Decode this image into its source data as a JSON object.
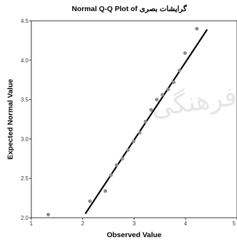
{
  "chart_data": {
    "type": "scatter",
    "title": "Normal Q-Q Plot of گرایشات بصری",
    "xlabel": "Observed Value",
    "ylabel": "Expected Normal Value",
    "xlim": [
      1,
      5
    ],
    "ylim": [
      2.0,
      4.5
    ],
    "xticks": [
      "1",
      "2",
      "3",
      "4",
      "5"
    ],
    "yticks": [
      "2.0",
      "2.5",
      "3.0",
      "3.5",
      "4.0",
      "4.5"
    ],
    "points": [
      {
        "x": 1.33,
        "y": 2.04
      },
      {
        "x": 2.14,
        "y": 2.21
      },
      {
        "x": 2.44,
        "y": 2.34
      },
      {
        "x": 2.55,
        "y": 2.54
      },
      {
        "x": 2.66,
        "y": 2.67
      },
      {
        "x": 2.77,
        "y": 2.75
      },
      {
        "x": 2.88,
        "y": 2.86
      },
      {
        "x": 2.99,
        "y": 2.97
      },
      {
        "x": 3.11,
        "y": 3.08
      },
      {
        "x": 3.22,
        "y": 3.22
      },
      {
        "x": 3.33,
        "y": 3.37
      },
      {
        "x": 3.44,
        "y": 3.5
      },
      {
        "x": 3.55,
        "y": 3.56
      },
      {
        "x": 3.66,
        "y": 3.63
      },
      {
        "x": 3.77,
        "y": 3.72
      },
      {
        "x": 3.88,
        "y": 3.87
      },
      {
        "x": 3.99,
        "y": 4.09
      },
      {
        "x": 4.22,
        "y": 4.4
      }
    ],
    "reference_line": {
      "x": [
        2.05,
        4.42
      ],
      "y": [
        2.05,
        4.39
      ]
    },
    "grid": false,
    "point_color": "#8c8c8c",
    "line_color": "#000000"
  }
}
